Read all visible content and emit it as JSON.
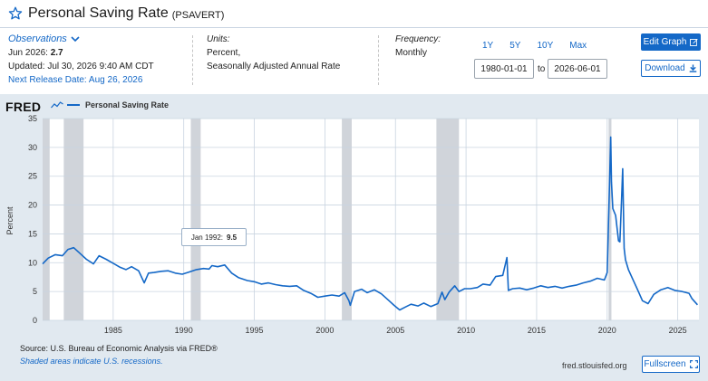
{
  "header": {
    "title": "Personal Saving Rate",
    "series_code": "(PSAVERT)"
  },
  "observations": {
    "label": "Observations",
    "latest_prefix": "Jun 2026:",
    "latest_value": "2.7",
    "updated": "Updated: Jul 30, 2026 9:40 AM CDT",
    "next_release": "Next Release Date: Aug 26, 2026"
  },
  "units": {
    "label": "Units:",
    "line1": "Percent,",
    "line2": "Seasonally Adjusted Annual Rate"
  },
  "frequency": {
    "label": "Frequency:",
    "value": "Monthly"
  },
  "range": {
    "buttons": [
      "1Y",
      "5Y",
      "10Y",
      "Max"
    ],
    "start": "1980-01-01",
    "to_label": "to",
    "end": "2026-06-01"
  },
  "actions": {
    "edit_graph": "Edit Graph",
    "download": "Download",
    "fullscreen": "Fullscreen"
  },
  "graph": {
    "logo": "FRED",
    "legend_label": "Personal Saving Rate",
    "source": "Source: U.S. Bureau of Economic Analysis via FRED®",
    "shaded_note": "Shaded areas indicate U.S. recessions.",
    "site": "fred.stlouisfed.org",
    "tooltip_date": "Jan 1992:",
    "tooltip_value": "9.5"
  },
  "colors": {
    "series": "#1468c7",
    "recession": "#c8cdd3",
    "panel": "#e1e9f0",
    "grid": "#c9d4e0"
  },
  "chart_data": {
    "type": "line",
    "title": "",
    "xlabel": "",
    "ylabel": "Percent",
    "ylim": [
      0,
      35
    ],
    "xlim": [
      1980.0,
      2026.5
    ],
    "yticks": [
      0,
      5,
      10,
      15,
      20,
      25,
      30,
      35
    ],
    "xticks": [
      1985,
      1990,
      1995,
      2000,
      2005,
      2010,
      2015,
      2020,
      2025
    ],
    "recessions": [
      [
        1980.0,
        1980.5
      ],
      [
        1981.5,
        1982.9
      ],
      [
        1990.5,
        1991.2
      ],
      [
        2001.2,
        2001.9
      ],
      [
        2007.9,
        2009.5
      ],
      [
        2020.1,
        2020.3
      ]
    ],
    "series": [
      {
        "name": "Personal Saving Rate",
        "x": [
          1980.0,
          1980.4,
          1980.9,
          1981.4,
          1981.8,
          1982.2,
          1982.7,
          1983.1,
          1983.6,
          1984.0,
          1984.5,
          1985.0,
          1985.5,
          1985.9,
          1986.3,
          1986.8,
          1987.2,
          1987.5,
          1987.9,
          1988.4,
          1988.9,
          1989.4,
          1989.9,
          1990.4,
          1990.9,
          1991.4,
          1991.8,
          1992.0,
          1992.4,
          1992.9,
          1993.4,
          1993.9,
          1994.5,
          1995.0,
          1995.5,
          1996.0,
          1996.5,
          1997.0,
          1997.5,
          1998.0,
          1998.5,
          1999.0,
          1999.5,
          2000.0,
          2000.5,
          2001.0,
          2001.4,
          2001.7,
          2001.8,
          2002.1,
          2002.6,
          2003.0,
          2003.5,
          2004.0,
          2004.5,
          2004.9,
          2005.3,
          2005.7,
          2006.1,
          2006.6,
          2007.0,
          2007.5,
          2008.0,
          2008.3,
          2008.5,
          2008.8,
          2009.2,
          2009.5,
          2009.9,
          2010.3,
          2010.8,
          2011.2,
          2011.7,
          2012.1,
          2012.6,
          2012.9,
          2013.0,
          2013.3,
          2013.8,
          2014.3,
          2014.8,
          2015.3,
          2015.8,
          2016.3,
          2016.8,
          2017.3,
          2017.8,
          2018.3,
          2018.8,
          2019.3,
          2019.8,
          2020.0,
          2020.25,
          2020.3,
          2020.4,
          2020.6,
          2020.8,
          2020.9,
          2021.0,
          2021.1,
          2021.2,
          2021.3,
          2021.5,
          2021.8,
          2022.1,
          2022.5,
          2022.9,
          2023.3,
          2023.8,
          2024.3,
          2024.8,
          2025.3,
          2025.8,
          2026.0,
          2026.4
        ],
        "y": [
          9.8,
          10.8,
          11.4,
          11.2,
          12.3,
          12.6,
          11.5,
          10.6,
          9.8,
          11.2,
          10.6,
          9.9,
          9.2,
          8.8,
          9.3,
          8.6,
          6.5,
          8.2,
          8.3,
          8.5,
          8.6,
          8.2,
          8.0,
          8.4,
          8.8,
          9.0,
          8.9,
          9.5,
          9.3,
          9.6,
          8.2,
          7.4,
          6.9,
          6.7,
          6.3,
          6.5,
          6.2,
          6.0,
          5.9,
          6.0,
          5.2,
          4.7,
          4.0,
          4.2,
          4.4,
          4.2,
          4.8,
          3.4,
          2.6,
          5.0,
          5.4,
          4.8,
          5.3,
          4.6,
          3.5,
          2.6,
          1.8,
          2.3,
          2.8,
          2.5,
          3.0,
          2.4,
          2.9,
          4.9,
          3.6,
          4.9,
          6.0,
          5.0,
          5.5,
          5.5,
          5.7,
          6.3,
          6.1,
          7.6,
          7.8,
          10.9,
          5.2,
          5.5,
          5.6,
          5.3,
          5.6,
          6.0,
          5.7,
          5.9,
          5.6,
          5.9,
          6.1,
          6.5,
          6.8,
          7.3,
          7.0,
          8.3,
          31.8,
          24.0,
          19.4,
          18.2,
          13.8,
          13.6,
          19.9,
          26.3,
          12.5,
          10.5,
          8.8,
          7.2,
          5.6,
          3.4,
          2.9,
          4.5,
          5.3,
          5.7,
          5.2,
          5.0,
          4.7,
          3.8,
          2.7
        ]
      }
    ]
  }
}
